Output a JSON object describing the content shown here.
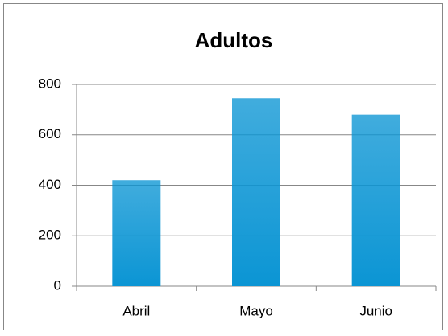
{
  "chart_data": {
    "type": "bar",
    "title": "Adultos",
    "categories": [
      "Abril",
      "Mayo",
      "Junio"
    ],
    "values": [
      420,
      745,
      680
    ],
    "color": "#0b95d4",
    "ylim": [
      0,
      800
    ],
    "yticks": [
      0,
      200,
      400,
      600,
      800
    ],
    "grid": true
  }
}
